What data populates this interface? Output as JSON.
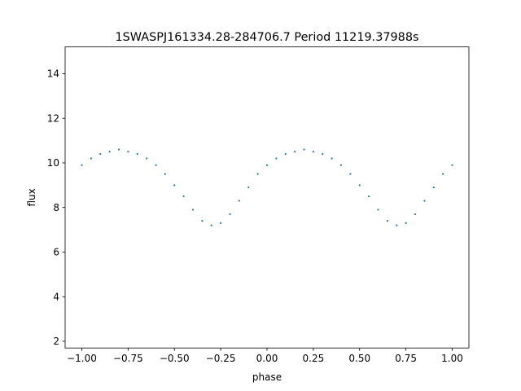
{
  "chart_data": {
    "type": "scatter",
    "title": "1SWASPJ161334.28-284706.7 Period 11219.37988s",
    "xlabel": "phase",
    "ylabel": "flux",
    "xlim": [
      -1.09,
      1.09
    ],
    "ylim": [
      1.7,
      15.2
    ],
    "xticks": [
      -1.0,
      -0.75,
      -0.5,
      -0.25,
      0.0,
      0.25,
      0.5,
      0.75,
      1.0
    ],
    "xtick_labels": [
      "−1.00",
      "−0.75",
      "−0.50",
      "−0.25",
      "0.00",
      "0.25",
      "0.50",
      "0.75",
      "1.00"
    ],
    "yticks": [
      2,
      4,
      6,
      8,
      10,
      12,
      14
    ],
    "ytick_labels": [
      "2",
      "4",
      "6",
      "8",
      "10",
      "12",
      "14"
    ],
    "grid": false,
    "marker_color": "#1f77b4",
    "series": [
      {
        "x": [
          -1.0,
          -0.95,
          -0.9,
          -0.85,
          -0.8,
          -0.75,
          -0.7,
          -0.65,
          -0.6,
          -0.55,
          -0.5,
          -0.45,
          -0.4,
          -0.35,
          -0.3,
          -0.25,
          -0.2,
          -0.15,
          -0.1,
          -0.05,
          0.0,
          0.05,
          0.1,
          0.15,
          0.2,
          0.25,
          0.3,
          0.35,
          0.4,
          0.45,
          0.5,
          0.55,
          0.6,
          0.65,
          0.7,
          0.75,
          0.8,
          0.85,
          0.9,
          0.95,
          1.0
        ],
        "y": [
          9.9,
          10.2,
          10.4,
          10.5,
          10.6,
          10.5,
          10.4,
          10.2,
          9.9,
          9.5,
          9.0,
          8.5,
          7.9,
          7.4,
          7.2,
          7.3,
          7.7,
          8.3,
          8.9,
          9.5,
          9.9,
          10.2,
          10.4,
          10.5,
          10.6,
          10.5,
          10.4,
          10.2,
          9.9,
          9.5,
          9.0,
          8.5,
          7.9,
          7.4,
          7.2,
          7.3,
          7.7,
          8.3,
          8.9,
          9.5,
          9.9
        ]
      }
    ]
  }
}
